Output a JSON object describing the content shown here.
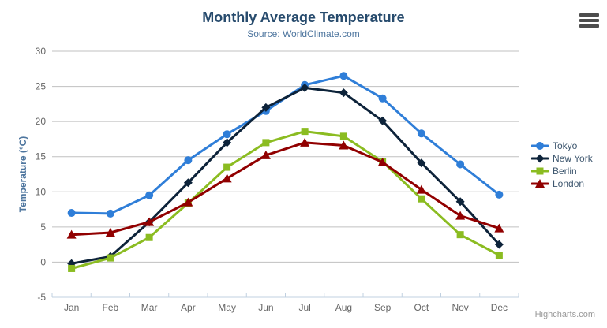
{
  "chart": {
    "title": "Monthly Average Temperature",
    "subtitle": "Source: WorldClimate.com",
    "y_axis_title": "Temperature (°C)",
    "credits": "Highcharts.com",
    "menu_icon": "hamburger-icon"
  },
  "colors": {
    "title": "#274b6d",
    "subtitle": "#4d759e",
    "grid": "#c0c0c0",
    "axis_line": "#c0d0e0",
    "axis_label": "#666666",
    "legend_text": "#3e576f",
    "credits": "#999999"
  },
  "chart_data": {
    "type": "line",
    "title": "Monthly Average Temperature",
    "subtitle": "Source: WorldClimate.com",
    "xlabel": "",
    "ylabel": "Temperature (°C)",
    "categories": [
      "Jan",
      "Feb",
      "Mar",
      "Apr",
      "May",
      "Jun",
      "Jul",
      "Aug",
      "Sep",
      "Oct",
      "Nov",
      "Dec"
    ],
    "yticks": [
      30,
      25,
      20,
      15,
      10,
      5,
      0,
      -5
    ],
    "ylim": [
      -5,
      30
    ],
    "grid": true,
    "legend_position": "right",
    "series": [
      {
        "name": "Tokyo",
        "color": "#2f7ed8",
        "marker": "circle",
        "values": [
          7.0,
          6.9,
          9.5,
          14.5,
          18.2,
          21.5,
          25.2,
          26.5,
          23.3,
          18.3,
          13.9,
          9.6
        ]
      },
      {
        "name": "New York",
        "color": "#0d233a",
        "marker": "diamond",
        "values": [
          -0.2,
          0.8,
          5.7,
          11.3,
          17.0,
          22.0,
          24.8,
          24.1,
          20.1,
          14.1,
          8.6,
          2.5
        ]
      },
      {
        "name": "Berlin",
        "color": "#8bbc21",
        "marker": "square",
        "values": [
          -0.9,
          0.6,
          3.5,
          8.4,
          13.5,
          17.0,
          18.6,
          17.9,
          14.3,
          9.0,
          3.9,
          1.0
        ]
      },
      {
        "name": "London",
        "color": "#910000",
        "marker": "triangle",
        "values": [
          3.9,
          4.2,
          5.7,
          8.5,
          11.9,
          15.2,
          17.0,
          16.6,
          14.2,
          10.3,
          6.6,
          4.8
        ]
      }
    ]
  }
}
